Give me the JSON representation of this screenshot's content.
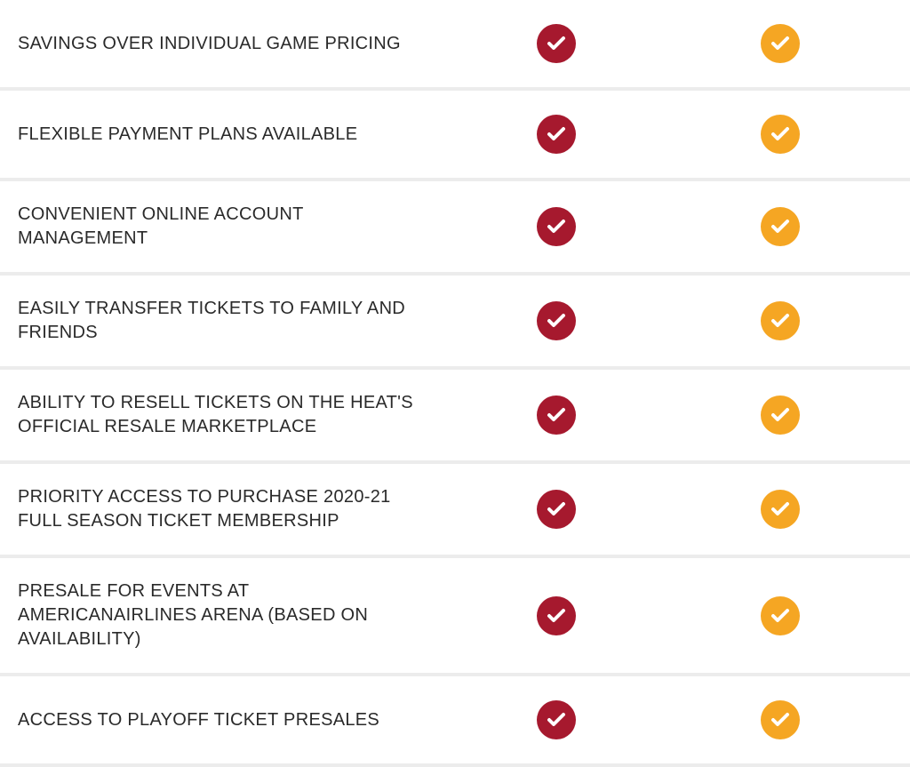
{
  "colors": {
    "plan1_check": "#a6192e",
    "plan2_check": "#f5a623",
    "check_icon": "#ffffff",
    "text": "#2a2a2a",
    "row_divider": "#ececec"
  },
  "features": [
    {
      "label": "SAVINGS OVER INDIVIDUAL GAME PRICING",
      "plan1": true,
      "plan2": true
    },
    {
      "label": "FLEXIBLE PAYMENT PLANS AVAILABLE",
      "plan1": true,
      "plan2": true
    },
    {
      "label": "CONVENIENT ONLINE ACCOUNT MANAGEMENT",
      "plan1": true,
      "plan2": true
    },
    {
      "label": "EASILY TRANSFER TICKETS TO FAMILY AND FRIENDS",
      "plan1": true,
      "plan2": true
    },
    {
      "label": "ABILITY TO RESELL TICKETS ON THE HEAT'S OFFICIAL RESALE MARKETPLACE",
      "plan1": true,
      "plan2": true
    },
    {
      "label": "PRIORITY ACCESS TO PURCHASE 2020-21 FULL SEASON TICKET MEMBERSHIP",
      "plan1": true,
      "plan2": true
    },
    {
      "label": "PRESALE FOR EVENTS AT AMERICANAIRLINES ARENA (BASED ON AVAILABILITY)",
      "plan1": true,
      "plan2": true
    },
    {
      "label": "ACCESS TO PLAYOFF TICKET PRESALES",
      "plan1": true,
      "plan2": true
    }
  ]
}
